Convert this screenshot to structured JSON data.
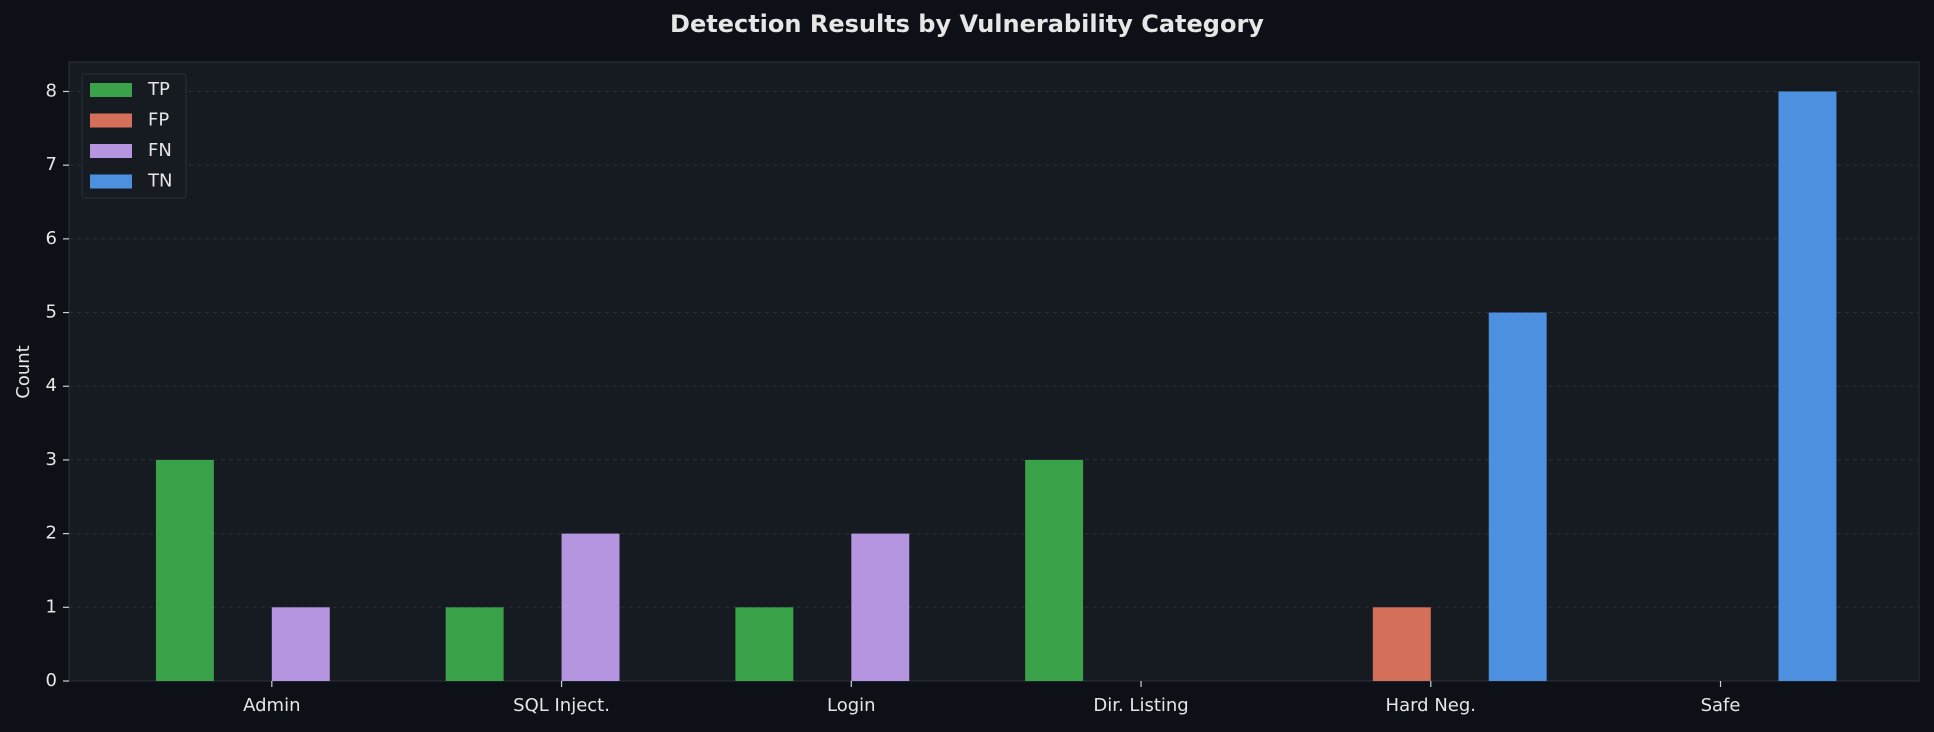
{
  "chart_data": {
    "type": "bar",
    "title": "Detection Results by Vulnerability Category",
    "y_label": "Count",
    "categories": [
      "Admin",
      "SQL Inject.",
      "Login",
      "Dir. Listing",
      "Hard Neg.",
      "Safe"
    ],
    "series": [
      {
        "name": "TP",
        "color": "#3aa34a",
        "values": [
          3,
          1,
          1,
          3,
          0,
          0
        ]
      },
      {
        "name": "FP",
        "color": "#d4705a",
        "values": [
          0,
          0,
          0,
          0,
          1,
          0
        ]
      },
      {
        "name": "FN",
        "color": "#b595df",
        "values": [
          1,
          2,
          2,
          0,
          0,
          0
        ]
      },
      {
        "name": "TN",
        "color": "#4e90e0",
        "values": [
          0,
          0,
          0,
          0,
          5,
          8
        ]
      }
    ],
    "ylim": [
      0,
      8.4
    ],
    "yticks": [
      0,
      1,
      2,
      3,
      4,
      5,
      6,
      7,
      8
    ],
    "grid": true,
    "legend": "upper-left"
  }
}
